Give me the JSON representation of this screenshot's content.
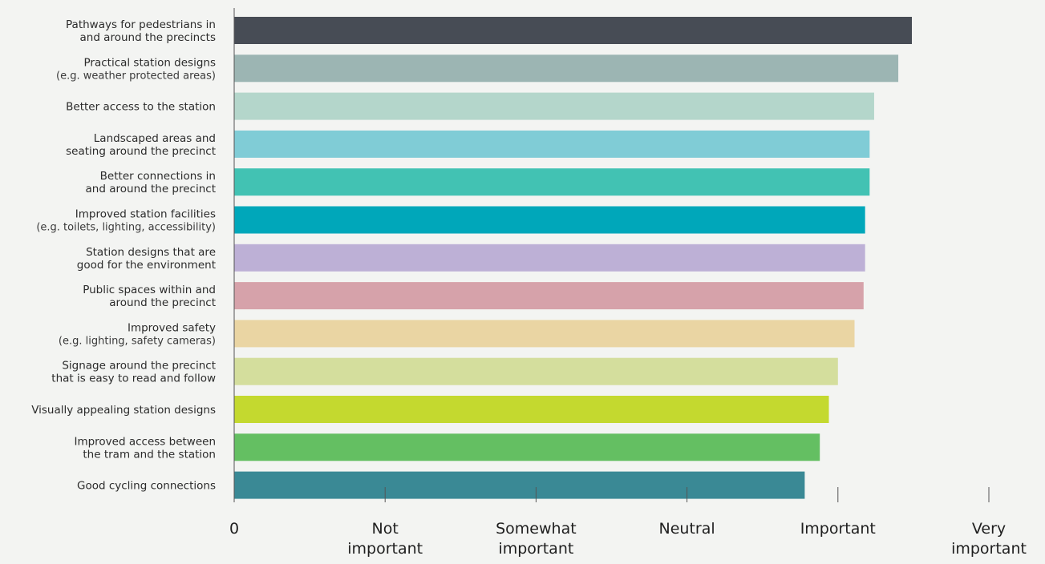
{
  "chart_data": {
    "type": "bar",
    "orientation": "horizontal",
    "title": "",
    "xlabel": "",
    "ylabel": "",
    "xlim": [
      0,
      5
    ],
    "grid": false,
    "legend": "none",
    "x_ticks": [
      {
        "value": 0,
        "lines": [
          "0"
        ]
      },
      {
        "value": 1,
        "lines": [
          "Not",
          "important"
        ]
      },
      {
        "value": 2,
        "lines": [
          "Somewhat",
          "important"
        ]
      },
      {
        "value": 3,
        "lines": [
          "Neutral"
        ]
      },
      {
        "value": 4,
        "lines": [
          "Important"
        ]
      },
      {
        "value": 5,
        "lines": [
          "Very",
          "important"
        ]
      }
    ],
    "categories": [
      {
        "lines": [
          "Pathways for pedestrians in",
          "and around the precincts"
        ],
        "value": 4.49,
        "color": "#474c55"
      },
      {
        "lines": [
          "Practical station designs",
          "(e.g. weather protected areas)"
        ],
        "value": 4.4,
        "color": "#9cb5b3"
      },
      {
        "lines": [
          "Better access to the station"
        ],
        "value": 4.24,
        "color": "#b4d6cb"
      },
      {
        "lines": [
          "Landscaped areas and",
          "seating around the precinct"
        ],
        "value": 4.21,
        "color": "#80ccd6"
      },
      {
        "lines": [
          "Better connections in",
          "and around the precinct"
        ],
        "value": 4.21,
        "color": "#42c2b3"
      },
      {
        "lines": [
          "Improved station facilities",
          "(e.g. toilets, lighting, accessibility)"
        ],
        "value": 4.18,
        "color": "#00a7ba"
      },
      {
        "lines": [
          "Station designs that are",
          "good for the environment"
        ],
        "value": 4.18,
        "color": "#bdb0d6"
      },
      {
        "lines": [
          "Public spaces within and",
          "around the precinct"
        ],
        "value": 4.17,
        "color": "#d6a2aa"
      },
      {
        "lines": [
          "Improved safety",
          "(e.g. lighting, safety cameras)"
        ],
        "value": 4.11,
        "color": "#ead5a3"
      },
      {
        "lines": [
          "Signage around the precinct",
          "that is easy to read and follow"
        ],
        "value": 4.0,
        "color": "#d4de9d"
      },
      {
        "lines": [
          "Visually appealing station designs"
        ],
        "value": 3.94,
        "color": "#c4d92f"
      },
      {
        "lines": [
          "Improved access between",
          "the tram and the station"
        ],
        "value": 3.88,
        "color": "#64bf62"
      },
      {
        "lines": [
          "Good cycling connections"
        ],
        "value": 3.78,
        "color": "#3a8995"
      }
    ]
  }
}
